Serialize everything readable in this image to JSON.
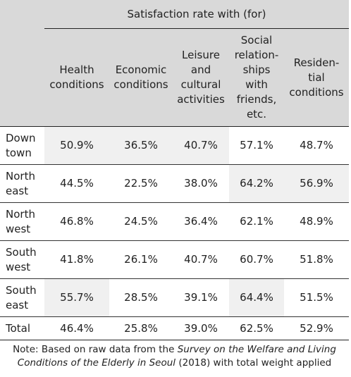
{
  "table": {
    "group_header": "Satisfaction rate with (for)",
    "columns": [
      "Health\nconditions",
      "Economic\nconditions",
      "Leisure\nand\ncultural\nactivities",
      "Social\nrelation-\nships\nwith\nfriends,\netc.",
      "Residen-\ntial\nconditions"
    ],
    "rows": [
      {
        "label": "Down\ntown",
        "cells": [
          "50.9%",
          "36.5%",
          "40.7%",
          "57.1%",
          "48.7%"
        ]
      },
      {
        "label": "North\neast",
        "cells": [
          "44.5%",
          "22.5%",
          "38.0%",
          "64.2%",
          "56.9%"
        ]
      },
      {
        "label": "North\nwest",
        "cells": [
          "46.8%",
          "24.5%",
          "36.4%",
          "62.1%",
          "48.9%"
        ]
      },
      {
        "label": "South\nwest",
        "cells": [
          "41.8%",
          "26.1%",
          "40.7%",
          "60.7%",
          "51.8%"
        ]
      },
      {
        "label": "South\neast",
        "cells": [
          "55.7%",
          "28.5%",
          "39.1%",
          "64.4%",
          "51.5%"
        ]
      },
      {
        "label": "Total",
        "cells": [
          "46.4%",
          "25.8%",
          "39.0%",
          "62.5%",
          "52.9%"
        ]
      }
    ]
  },
  "note": {
    "prefix": "Note: Based on raw data from the",
    "title": "Survey on the Welfare and Living Conditions of the Elderly in Seoul",
    "suffix": "(2018) with total weight applied"
  }
}
